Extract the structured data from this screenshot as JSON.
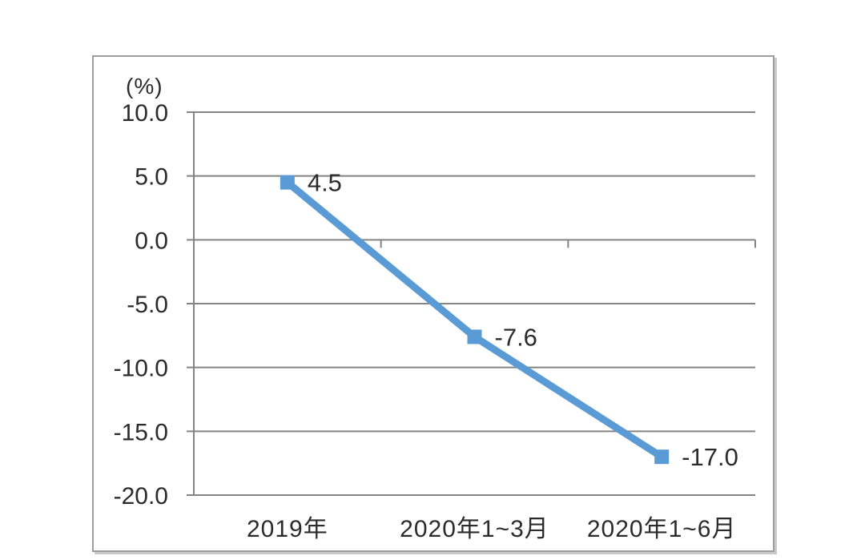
{
  "page": {
    "background_color": "#ffffff",
    "frame_border_color": "#9e9e9e"
  },
  "chart_data": {
    "type": "line",
    "title": "",
    "xlabel": "",
    "ylabel": "(%)",
    "categories": [
      "2019年",
      "2020年1~3月",
      "2020年1~6月"
    ],
    "series": [
      {
        "values": [
          4.5,
          -7.6,
          -17.0
        ],
        "data_labels": [
          "4.5",
          "-7.6",
          "-17.0"
        ]
      }
    ],
    "ylim": [
      -20,
      10
    ],
    "yticks": [
      10,
      5,
      0,
      -5,
      -10,
      -15,
      -20
    ],
    "ytick_labels": [
      "10.0",
      "5.0",
      "0.0",
      "-5.0",
      "-10.0",
      "-15.0",
      "-20.0"
    ],
    "grid": true,
    "legend": "none",
    "marker": "square",
    "line_color": "#5B9BD5",
    "grid_color": "#848484",
    "text_color": "#2b2b2b"
  }
}
